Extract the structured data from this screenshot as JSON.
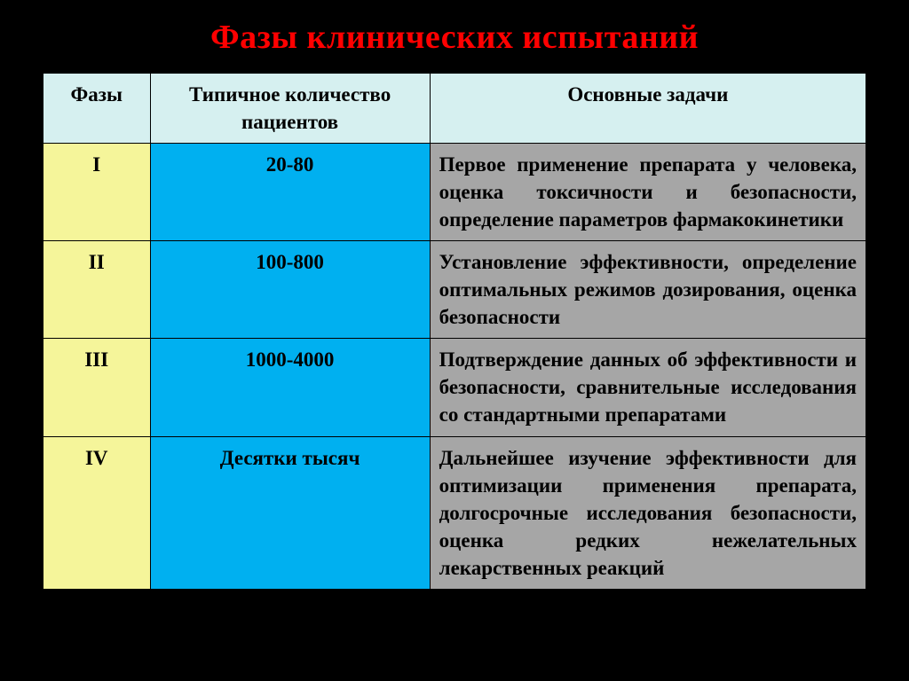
{
  "title": {
    "text": "Фазы клинических испытаний",
    "color": "#ff0000"
  },
  "table": {
    "header_bg": "#d6f0f0",
    "phase_bg": "#f5f59a",
    "count_bg": "#00b0f0",
    "task_bg": "#a6a6a6",
    "columns": [
      "Фазы",
      "Типичное количество пациентов",
      "Основные задачи"
    ],
    "rows": [
      {
        "phase": "I",
        "count": "20-80",
        "task": "Первое применение препарата у человека, оценка токсичности и безопасности, определение параметров фармакокинетики"
      },
      {
        "phase": "II",
        "count": "100-800",
        "task": "Установление эффективности, определение оптимальных режимов дозирования, оценка безопасности"
      },
      {
        "phase": "III",
        "count": "1000-4000",
        "task": "Подтверждение данных об эффективности и безопасности, сравнительные исследования со стандартными препаратами"
      },
      {
        "phase": "IV",
        "count": "Десятки тысяч",
        "task": "Дальнейшее изучение эффективности для оптимизации применения препарата, долгосрочные исследования безопасности, оценка редких нежелательных лекарственных реакций"
      }
    ]
  }
}
